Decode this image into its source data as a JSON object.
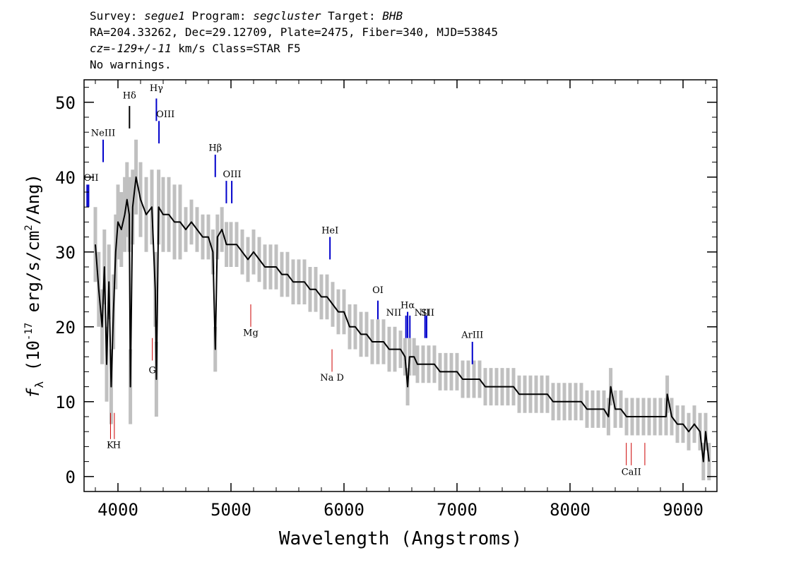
{
  "header": {
    "line1": {
      "survey_label": "Survey: ",
      "survey": "segue1",
      "program_label": " Program: ",
      "program": "segcluster",
      "target_label": " Target: ",
      "target": "BHB"
    },
    "line2": "RA=204.33262, Dec=29.12709, Plate=2475, Fiber=340, MJD=53845",
    "line3": {
      "cz_label": "cz=",
      "cz": "-129+/-11",
      "rest": " km/s Class=STAR F5"
    },
    "line4": "No warnings."
  },
  "chart_data": {
    "type": "line",
    "xlabel": "Wavelength (Angstroms)",
    "ylabel_parts": {
      "f": "f",
      "sub": "λ",
      "open": " (10",
      "exp1": "-17",
      "mid": " erg/s/cm",
      "exp2": "2",
      "close": "/Ang)"
    },
    "xlim": [
      3700,
      9300
    ],
    "ylim": [
      -2,
      53
    ],
    "x_ticks": [
      4000,
      5000,
      6000,
      7000,
      8000,
      9000
    ],
    "y_ticks": [
      0,
      10,
      20,
      30,
      40,
      50
    ],
    "colors": {
      "flux": "#000000",
      "error_band": "#c0c0c0",
      "emission": "#0000cc",
      "absorption": "#cc0000"
    },
    "series": [
      {
        "role": "flux",
        "x": [
          3800,
          3830,
          3860,
          3880,
          3900,
          3920,
          3940,
          3960,
          3980,
          4000,
          4030,
          4060,
          4080,
          4100,
          4110,
          4130,
          4160,
          4200,
          4250,
          4300,
          4330,
          4340,
          4360,
          4400,
          4450,
          4500,
          4550,
          4600,
          4650,
          4700,
          4750,
          4800,
          4840,
          4861,
          4880,
          4920,
          4960,
          5000,
          5050,
          5100,
          5150,
          5200,
          5250,
          5300,
          5350,
          5400,
          5450,
          5500,
          5550,
          5600,
          5650,
          5700,
          5750,
          5800,
          5850,
          5900,
          5950,
          6000,
          6050,
          6100,
          6150,
          6200,
          6250,
          6300,
          6350,
          6400,
          6450,
          6500,
          6540,
          6563,
          6580,
          6620,
          6650,
          6700,
          6750,
          6800,
          6850,
          6900,
          6950,
          7000,
          7050,
          7100,
          7150,
          7200,
          7250,
          7300,
          7350,
          7400,
          7450,
          7500,
          7550,
          7600,
          7650,
          7700,
          7750,
          7800,
          7850,
          7900,
          7950,
          8000,
          8050,
          8100,
          8150,
          8200,
          8250,
          8300,
          8340,
          8360,
          8400,
          8450,
          8500,
          8550,
          8600,
          8650,
          8700,
          8750,
          8800,
          8850,
          8860,
          8900,
          8950,
          9000,
          9050,
          9100,
          9150,
          9180,
          9200,
          9230
        ],
        "y": [
          31,
          25,
          20,
          28,
          15,
          26,
          12,
          22,
          30,
          34,
          33,
          35,
          37,
          35,
          12,
          36,
          40,
          37,
          35,
          36,
          25,
          13,
          36,
          35,
          35,
          34,
          34,
          33,
          34,
          33,
          32,
          32,
          30,
          17,
          32,
          33,
          31,
          31,
          31,
          30,
          29,
          30,
          29,
          28,
          28,
          28,
          27,
          27,
          26,
          26,
          26,
          25,
          25,
          24,
          24,
          23,
          22,
          22,
          20,
          20,
          19,
          19,
          18,
          18,
          18,
          17,
          17,
          17,
          16,
          12,
          16,
          16,
          15,
          15,
          15,
          15,
          14,
          14,
          14,
          14,
          13,
          13,
          13,
          13,
          12,
          12,
          12,
          12,
          12,
          12,
          11,
          11,
          11,
          11,
          11,
          11,
          10,
          10,
          10,
          10,
          10,
          10,
          9,
          9,
          9,
          9,
          8,
          12,
          9,
          9,
          8,
          8,
          8,
          8,
          8,
          8,
          8,
          8,
          11,
          8,
          7,
          7,
          6,
          7,
          6,
          2,
          6,
          2
        ]
      }
    ],
    "line_labels": [
      {
        "name": "NeIII",
        "x": 3869,
        "kind": "emission"
      },
      {
        "name": "OII",
        "x": 3727,
        "kind": "emission"
      },
      {
        "name": "Hδ",
        "x": 4102,
        "kind": "absorption-line"
      },
      {
        "name": "Hγ",
        "x": 4340,
        "kind": "emission"
      },
      {
        "name": "OIII",
        "x": 4363,
        "kind": "emission"
      },
      {
        "name": "Hβ",
        "x": 4861,
        "kind": "emission"
      },
      {
        "name": "OIII",
        "x": 4959,
        "kind": "emission"
      },
      {
        "name": "HeI",
        "x": 5876,
        "kind": "emission"
      },
      {
        "name": "OI",
        "x": 6300,
        "kind": "emission"
      },
      {
        "name": "NII",
        "x": 6548,
        "kind": "emission"
      },
      {
        "name": "Hα",
        "x": 6563,
        "kind": "emission"
      },
      {
        "name": "NII",
        "x": 6583,
        "kind": "emission"
      },
      {
        "name": "SII",
        "x": 6717,
        "kind": "emission"
      },
      {
        "name": "ArIII",
        "x": 7136,
        "kind": "emission"
      },
      {
        "name": "K",
        "x": 3934,
        "kind": "absorption"
      },
      {
        "name": "H",
        "x": 3968,
        "kind": "absorption"
      },
      {
        "name": "G",
        "x": 4304,
        "kind": "absorption"
      },
      {
        "name": "Mg",
        "x": 5175,
        "kind": "absorption"
      },
      {
        "name": "Na D",
        "x": 5894,
        "kind": "absorption"
      },
      {
        "name": "CaII",
        "x": 8542,
        "kind": "absorption"
      }
    ]
  }
}
